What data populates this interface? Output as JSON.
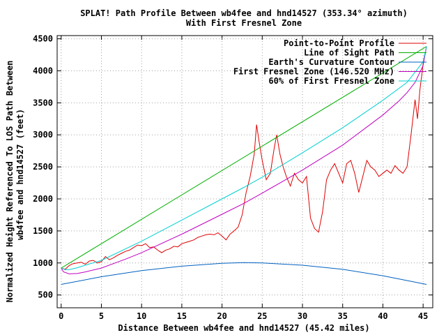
{
  "chart_data": {
    "type": "line",
    "title_line1": "SPLAT! Path Profile Between wb4fee and hnd14527 (353.34° azimuth)",
    "title_line2": "With First Fresnel Zone",
    "xlabel": "Distance Between wb4fee and hnd14527 (45.42 miles)",
    "ylabel_line1": "Normalized Height Referenced To LOS Path Between",
    "ylabel_line2": "wb4fee and hnd14527 (feet)",
    "xlim": [
      -0.5,
      46.2
    ],
    "ylim": [
      300,
      4550
    ],
    "xticks": [
      0,
      5,
      10,
      15,
      20,
      25,
      30,
      35,
      40,
      45
    ],
    "yticks": [
      500,
      1000,
      1500,
      2000,
      2500,
      3000,
      3500,
      4000,
      4500
    ],
    "grid": true,
    "legend_position": "top-right",
    "series": [
      {
        "name": "Point-to-Point Profile",
        "color": "#e00000",
        "points": [
          [
            0,
            920
          ],
          [
            0.5,
            900
          ],
          [
            1,
            960
          ],
          [
            1.5,
            990
          ],
          [
            2,
            1000
          ],
          [
            2.5,
            1010
          ],
          [
            3,
            980
          ],
          [
            3.5,
            1030
          ],
          [
            4,
            1040
          ],
          [
            4.5,
            1000
          ],
          [
            5,
            1020
          ],
          [
            5.5,
            1100
          ],
          [
            6,
            1050
          ],
          [
            6.5,
            1080
          ],
          [
            7,
            1120
          ],
          [
            7.5,
            1150
          ],
          [
            8,
            1180
          ],
          [
            8.5,
            1200
          ],
          [
            9,
            1240
          ],
          [
            9.5,
            1280
          ],
          [
            10,
            1270
          ],
          [
            10.5,
            1300
          ],
          [
            11,
            1240
          ],
          [
            11.5,
            1250
          ],
          [
            12,
            1200
          ],
          [
            12.5,
            1160
          ],
          [
            13,
            1200
          ],
          [
            13.5,
            1220
          ],
          [
            14,
            1260
          ],
          [
            14.5,
            1250
          ],
          [
            15,
            1300
          ],
          [
            15.5,
            1320
          ],
          [
            16,
            1340
          ],
          [
            16.5,
            1360
          ],
          [
            17,
            1400
          ],
          [
            17.5,
            1420
          ],
          [
            18,
            1440
          ],
          [
            18.5,
            1450
          ],
          [
            19,
            1440
          ],
          [
            19.5,
            1470
          ],
          [
            20,
            1420
          ],
          [
            20.5,
            1360
          ],
          [
            21,
            1450
          ],
          [
            21.5,
            1500
          ],
          [
            22,
            1560
          ],
          [
            22.5,
            1750
          ],
          [
            23,
            2100
          ],
          [
            23.5,
            2350
          ],
          [
            24,
            2700
          ],
          [
            24.3,
            3160
          ],
          [
            24.6,
            2900
          ],
          [
            25,
            2600
          ],
          [
            25.5,
            2300
          ],
          [
            26,
            2400
          ],
          [
            26.5,
            2800
          ],
          [
            26.8,
            3000
          ],
          [
            27.2,
            2700
          ],
          [
            27.6,
            2500
          ],
          [
            28,
            2350
          ],
          [
            28.5,
            2200
          ],
          [
            29,
            2400
          ],
          [
            29.5,
            2300
          ],
          [
            30,
            2250
          ],
          [
            30.5,
            2350
          ],
          [
            31,
            1700
          ],
          [
            31.5,
            1540
          ],
          [
            32,
            1480
          ],
          [
            32.5,
            1800
          ],
          [
            33,
            2300
          ],
          [
            33.5,
            2450
          ],
          [
            34,
            2550
          ],
          [
            34.5,
            2400
          ],
          [
            35,
            2250
          ],
          [
            35.5,
            2550
          ],
          [
            36,
            2600
          ],
          [
            36.5,
            2400
          ],
          [
            37,
            2100
          ],
          [
            37.5,
            2350
          ],
          [
            38,
            2600
          ],
          [
            38.5,
            2500
          ],
          [
            39,
            2450
          ],
          [
            39.5,
            2350
          ],
          [
            40,
            2400
          ],
          [
            40.5,
            2450
          ],
          [
            41,
            2400
          ],
          [
            41.5,
            2520
          ],
          [
            42,
            2450
          ],
          [
            42.5,
            2400
          ],
          [
            43,
            2500
          ],
          [
            43.5,
            3000
          ],
          [
            44,
            3550
          ],
          [
            44.3,
            3250
          ],
          [
            44.6,
            3700
          ],
          [
            45,
            4100
          ],
          [
            45.42,
            4380
          ]
        ]
      },
      {
        "name": "Line of Sight Path",
        "color": "#00b000",
        "points": [
          [
            0,
            920
          ],
          [
            45.42,
            4380
          ]
        ]
      },
      {
        "name": "Earth's Curvature Contour",
        "color": "#0060c0",
        "points": [
          [
            0,
            665
          ],
          [
            5,
            785
          ],
          [
            10,
            880
          ],
          [
            15,
            950
          ],
          [
            20,
            995
          ],
          [
            22.71,
            1005
          ],
          [
            25,
            1000
          ],
          [
            30,
            965
          ],
          [
            35,
            900
          ],
          [
            40,
            800
          ],
          [
            45.42,
            665
          ]
        ]
      },
      {
        "name": "First Fresnel Zone (146.520 MHz)",
        "color": "#c000c0",
        "points": [
          [
            0,
            920
          ],
          [
            0.3,
            860
          ],
          [
            1,
            830
          ],
          [
            2,
            835
          ],
          [
            3,
            860
          ],
          [
            5,
            920
          ],
          [
            8,
            1060
          ],
          [
            10,
            1160
          ],
          [
            15,
            1450
          ],
          [
            20,
            1760
          ],
          [
            22.71,
            1930
          ],
          [
            25,
            2090
          ],
          [
            30,
            2450
          ],
          [
            35,
            2840
          ],
          [
            40,
            3310
          ],
          [
            42,
            3530
          ],
          [
            43,
            3660
          ],
          [
            44,
            3820
          ],
          [
            45,
            4080
          ],
          [
            45.42,
            4380
          ]
        ]
      },
      {
        "name": "60% of First Fresnel Zone",
        "color": "#00d0d0",
        "points": [
          [
            0,
            920
          ],
          [
            0.5,
            895
          ],
          [
            1,
            895
          ],
          [
            2,
            925
          ],
          [
            3,
            965
          ],
          [
            5,
            1040
          ],
          [
            10,
            1340
          ],
          [
            15,
            1670
          ],
          [
            20,
            2000
          ],
          [
            22.71,
            2180
          ],
          [
            25,
            2340
          ],
          [
            30,
            2720
          ],
          [
            35,
            3110
          ],
          [
            40,
            3540
          ],
          [
            43,
            3820
          ],
          [
            45,
            4140
          ],
          [
            45.42,
            4380
          ]
        ]
      }
    ]
  }
}
